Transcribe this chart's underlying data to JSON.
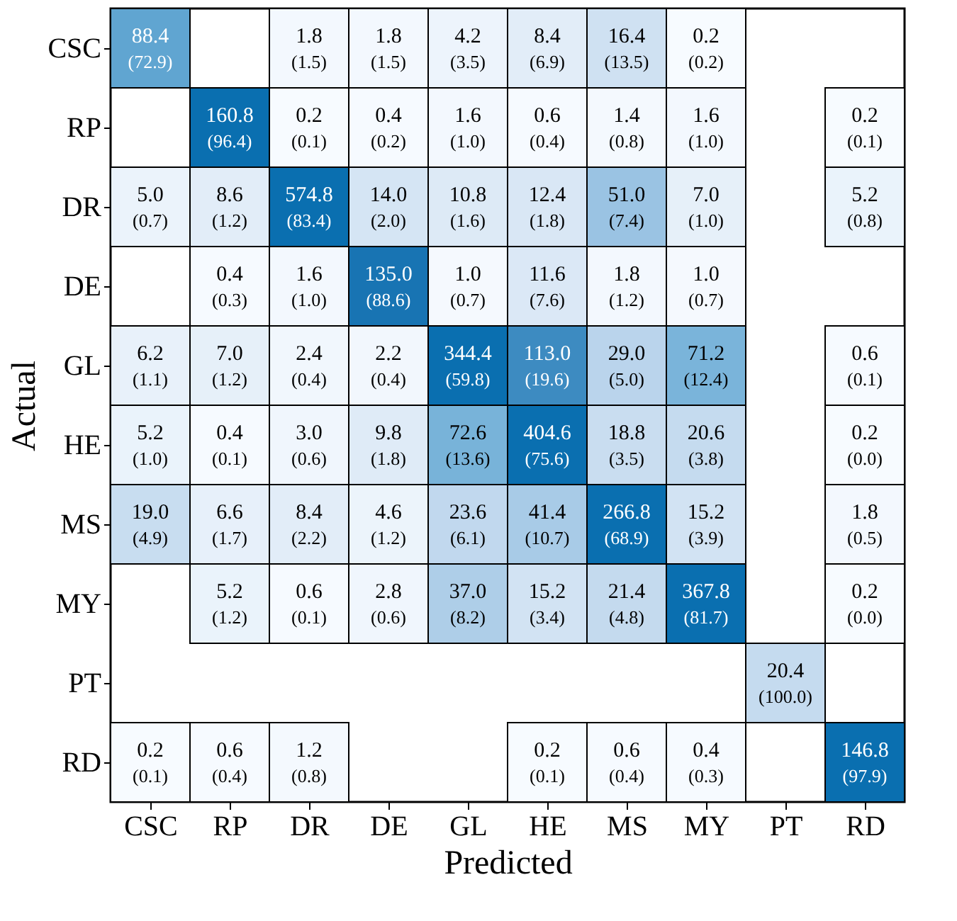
{
  "chart_data": {
    "type": "heatmap",
    "xlabel": "Predicted",
    "ylabel": "Actual",
    "categories": [
      "CSC",
      "RP",
      "DR",
      "DE",
      "GL",
      "HE",
      "MS",
      "MY",
      "PT",
      "RD"
    ],
    "y_categories": [
      "CSC",
      "RP",
      "DR",
      "DE",
      "GL",
      "HE",
      "MS",
      "MY",
      "PT",
      "RD"
    ],
    "cells": [
      [
        88.4,
        null,
        1.8,
        1.8,
        4.2,
        8.4,
        16.4,
        0.2,
        null,
        null
      ],
      [
        null,
        160.8,
        0.2,
        0.4,
        1.6,
        0.6,
        1.4,
        1.6,
        null,
        0.2
      ],
      [
        5.0,
        8.6,
        574.8,
        14.0,
        10.8,
        12.4,
        51.0,
        7.0,
        null,
        5.2
      ],
      [
        null,
        0.4,
        1.6,
        135.0,
        1.0,
        11.6,
        1.8,
        1.0,
        null,
        null
      ],
      [
        6.2,
        7.0,
        2.4,
        2.2,
        344.4,
        113.0,
        29.0,
        71.2,
        null,
        0.6
      ],
      [
        5.2,
        0.4,
        3.0,
        9.8,
        72.6,
        404.6,
        18.8,
        20.6,
        null,
        0.2
      ],
      [
        19.0,
        6.6,
        8.4,
        4.6,
        23.6,
        41.4,
        266.8,
        15.2,
        null,
        1.8
      ],
      [
        null,
        5.2,
        0.6,
        2.8,
        37.0,
        15.2,
        21.4,
        367.8,
        null,
        0.2
      ],
      [
        null,
        null,
        null,
        null,
        null,
        null,
        null,
        null,
        20.4,
        null
      ],
      [
        0.2,
        0.6,
        1.2,
        null,
        null,
        0.2,
        0.6,
        0.4,
        null,
        146.8
      ]
    ],
    "cell_labels": [
      [
        "88.4",
        null,
        "1.8",
        "1.8",
        "4.2",
        "8.4",
        "16.4",
        "0.2",
        null,
        null
      ],
      [
        null,
        "160.8",
        "0.2",
        "0.4",
        "1.6",
        "0.6",
        "1.4",
        "1.6",
        null,
        "0.2"
      ],
      [
        "5.0",
        "8.6",
        "574.8",
        "14.0",
        "10.8",
        "12.4",
        "51.0",
        "7.0",
        null,
        "5.2"
      ],
      [
        null,
        "0.4",
        "1.6",
        "135.0",
        "1.0",
        "11.6",
        "1.8",
        "1.0",
        null,
        null
      ],
      [
        "6.2",
        "7.0",
        "2.4",
        "2.2",
        "344.4",
        "113.0",
        "29.0",
        "71.2",
        null,
        "0.6"
      ],
      [
        "5.2",
        "0.4",
        "3.0",
        "9.8",
        "72.6",
        "404.6",
        "18.8",
        "20.6",
        null,
        "0.2"
      ],
      [
        "19.0",
        "6.6",
        "8.4",
        "4.6",
        "23.6",
        "41.4",
        "266.8",
        "15.2",
        null,
        "1.8"
      ],
      [
        null,
        "5.2",
        "0.6",
        "2.8",
        "37.0",
        "15.2",
        "21.4",
        "367.8",
        null,
        "0.2"
      ],
      [
        null,
        null,
        null,
        null,
        null,
        null,
        null,
        null,
        "20.4",
        null
      ],
      [
        "0.2",
        "0.6",
        "1.2",
        null,
        null,
        "0.2",
        "0.6",
        "0.4",
        null,
        "146.8"
      ]
    ],
    "annotations": [
      "(72.9)",
      "(1.5)",
      "(1.5)",
      "(3.5)",
      "(6.9)",
      "(13.5)",
      "(0.2)",
      "(96.4)",
      "(0.1)",
      "(0.2)",
      "(1.0)",
      "(0.4)",
      "(0.8)",
      "(1.0)",
      "(0.1)",
      "(0.7)",
      "(1.2)",
      "(83.4)",
      "(2.0)",
      "(1.6)",
      "(1.8)",
      "(7.4)",
      "(1.0)",
      "(0.8)",
      "(0.3)",
      "(1.0)",
      "(88.6)",
      "(0.7)",
      "(7.6)",
      "(1.2)",
      "(0.7)",
      "(1.1)",
      "(1.2)",
      "(0.4)",
      "(0.4)",
      "(59.8)",
      "(19.6)",
      "(5.0)",
      "(12.4)",
      "(0.1)",
      "(1.0)",
      "(0.1)",
      "(0.6)",
      "(1.8)",
      "(13.6)",
      "(75.6)",
      "(3.5)",
      "(3.8)",
      "(0.0)",
      "(4.9)",
      "(1.7)",
      "(2.2)",
      "(1.2)",
      "(6.1)",
      "(10.7)",
      "(68.9)",
      "(3.9)",
      "(0.5)",
      "(1.2)",
      "(0.1)",
      "(0.6)",
      "(8.2)",
      "(3.4)",
      "(4.8)",
      "(81.7)",
      "(0.0)",
      "(100.0)",
      "(0.1)",
      "(0.4)",
      "(0.8)",
      "(0.1)",
      "(0.4)",
      "(0.3)",
      "(97.9)"
    ]
  }
}
